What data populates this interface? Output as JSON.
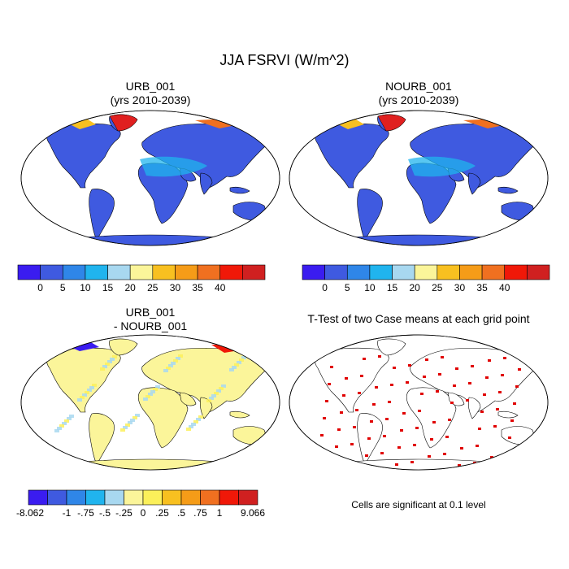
{
  "title": "JJA FSRVI (W/m^2)",
  "panels": [
    {
      "id": "urb",
      "title_line1": "URB_001",
      "title_line2": "(yrs 2010-2039)"
    },
    {
      "id": "nourb",
      "title_line1": "NOURB_001",
      "title_line2": "(yrs 2010-2039)"
    },
    {
      "id": "diff",
      "title_line1": "URB_001",
      "title_line2": "- NOURB_001"
    },
    {
      "id": "ttest",
      "title_line1": "T-Test of two Case means at each grid point",
      "title_line2": ""
    }
  ],
  "colorbars": {
    "mean": {
      "colors": [
        "#3a1cf0",
        "#3f5ae0",
        "#2f86e8",
        "#20b4ee",
        "#a8d8f0",
        "#fbf59a",
        "#f8c020",
        "#f59c18",
        "#f07020",
        "#f01808",
        "#d02020"
      ],
      "labels": [
        "0",
        "5",
        "10",
        "15",
        "20",
        "25",
        "30",
        "35",
        "40"
      ]
    },
    "diff": {
      "colors": [
        "#3a1cf0",
        "#3f5ae0",
        "#2f86e8",
        "#20b4ee",
        "#a8d8f0",
        "#fbf59a",
        "#fbf05a",
        "#f8c020",
        "#f59c18",
        "#f07020",
        "#f01808",
        "#d02020"
      ],
      "labels": [
        "-8.062",
        "-1",
        "-.75",
        "-.5",
        "-.25",
        "0",
        ".25",
        ".5",
        ".75",
        "1",
        "9.066"
      ]
    }
  },
  "ttest_note": "Cells are significant at 0.1 level",
  "colors": {
    "ocean": "#ffffff",
    "land_mean": "#3f5ae0",
    "land_diff": "#fbf59a",
    "significant": "#e00000"
  }
}
